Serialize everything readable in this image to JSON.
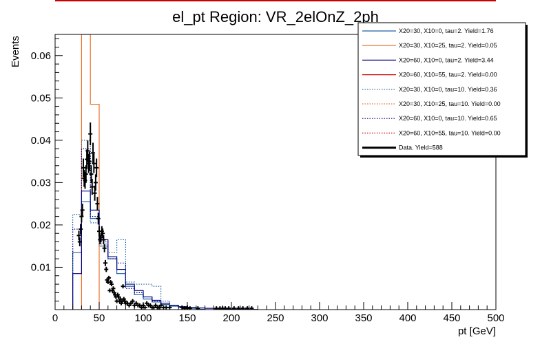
{
  "chart_data": {
    "type": "line",
    "title": "el_pt Region: VR_2elOnZ_2ph",
    "xlabel": "pt [GeV]",
    "ylabel": "Events",
    "xlim": [
      0,
      500
    ],
    "ylim": [
      0,
      0.065
    ],
    "xticks": [
      0,
      50,
      100,
      150,
      200,
      250,
      300,
      350,
      400,
      450,
      500
    ],
    "yticks": [
      0.01,
      0.02,
      0.03,
      0.04,
      0.05,
      0.06
    ],
    "grid": false,
    "legend_position": "top-right",
    "bin_width": 10,
    "series": [
      {
        "name": "X20=30, X10=0, tau=2. Yield=1.76",
        "color": "#1f5fa0",
        "style": "solid",
        "x": [
          25,
          35,
          45,
          55,
          65,
          75,
          85,
          95,
          105,
          115,
          125,
          135,
          145,
          155,
          165
        ],
        "values": [
          0.0135,
          0.0255,
          0.0215,
          0.015,
          0.012,
          0.0085,
          0.0055,
          0.0035,
          0.0025,
          0.0018,
          0.0012,
          0.0008,
          0.0005,
          0.0003,
          0.0001
        ]
      },
      {
        "name": "X20=30, X10=25, tau=2. Yield=0.05",
        "color": "#e8702a",
        "style": "solid",
        "x": [
          35,
          45
        ],
        "values": [
          0.12,
          0.0485
        ]
      },
      {
        "name": "X20=60, X10=0, tau=2. Yield=3.44",
        "color": "#000080",
        "style": "solid",
        "x": [
          25,
          35,
          45,
          55,
          65,
          75,
          85,
          95,
          105,
          115,
          125,
          135,
          145,
          155,
          165,
          175,
          185,
          195,
          205,
          215,
          225
        ],
        "values": [
          0.0085,
          0.028,
          0.0235,
          0.0165,
          0.0125,
          0.0095,
          0.006,
          0.0045,
          0.003,
          0.0022,
          0.0015,
          0.001,
          0.0007,
          0.0005,
          0.0004,
          0.0003,
          0.0002,
          0.00015,
          0.0001,
          0.0001,
          5e-05
        ]
      },
      {
        "name": "X20=60, X10=55, tau=2. Yield=0.00",
        "color": "#cc0000",
        "style": "solid",
        "x": [],
        "values": []
      },
      {
        "name": "X20=30, X10=0, tau=10. Yield=0.36",
        "color": "#1f5fa0",
        "style": "dotted",
        "x": [
          25,
          35,
          45,
          55,
          65,
          75,
          85,
          95,
          105,
          115,
          125
        ],
        "values": [
          0.0225,
          0.04,
          0.0205,
          0.0155,
          0.0135,
          0.0165,
          0.0065,
          0.006,
          0.006,
          0.0055,
          0.002
        ]
      },
      {
        "name": "X20=30, X10=25, tau=10. Yield=0.00",
        "color": "#e8702a",
        "style": "dotted",
        "x": [],
        "values": []
      },
      {
        "name": "X20=60, X10=0, tau=10. Yield=0.65",
        "color": "#000080",
        "style": "dotted",
        "x": [
          25,
          35,
          45,
          55,
          65,
          75,
          85,
          95,
          105,
          115
        ],
        "values": [
          0.019,
          0.038,
          0.022,
          0.016,
          0.012,
          0.011,
          0.005,
          0.004,
          0.003,
          0.002
        ]
      },
      {
        "name": "X20=60, X10=55, tau=10. Yield=0.00",
        "color": "#cc0000",
        "style": "dotted",
        "x": [],
        "values": []
      },
      {
        "name": "Data. Yield=588",
        "color": "#000000",
        "style": "points",
        "points": [
          [
            27,
            0.0175
          ],
          [
            28,
            0.016
          ],
          [
            29,
            0.019
          ],
          [
            30,
            0.022
          ],
          [
            31,
            0.0235
          ],
          [
            32,
            0.0335
          ],
          [
            33,
            0.031
          ],
          [
            34,
            0.0305
          ],
          [
            35,
            0.032
          ],
          [
            36,
            0.0355
          ],
          [
            37,
            0.0375
          ],
          [
            38,
            0.0345
          ],
          [
            39,
            0.035
          ],
          [
            40,
            0.0415
          ],
          [
            41,
            0.032
          ],
          [
            42,
            0.029
          ],
          [
            43,
            0.037
          ],
          [
            44,
            0.0345
          ],
          [
            45,
            0.0275
          ],
          [
            46,
            0.03
          ],
          [
            47,
            0.0335
          ],
          [
            48,
            0.025
          ],
          [
            49,
            0.0215
          ],
          [
            50,
            0.0185
          ],
          [
            51,
            0.0165
          ],
          [
            52,
            0.017
          ],
          [
            53,
            0.0185
          ],
          [
            54,
            0.018
          ],
          [
            55,
            0.0165
          ],
          [
            56,
            0.0145
          ],
          [
            57,
            0.011
          ],
          [
            58,
            0.0095
          ],
          [
            59,
            0.007
          ],
          [
            60,
            0.0065
          ],
          [
            61,
            0.0075
          ],
          [
            62,
            0.0045
          ],
          [
            63,
            0.0065
          ],
          [
            64,
            0.006
          ],
          [
            65,
            0.0045
          ],
          [
            66,
            0.005
          ],
          [
            67,
            0.004
          ],
          [
            68,
            0.0035
          ],
          [
            69,
            0.003
          ],
          [
            70,
            0.002
          ],
          [
            71,
            0.0035
          ],
          [
            72,
            0.003
          ],
          [
            73,
            0.002
          ],
          [
            74,
            0.0025
          ],
          [
            75,
            0.0015
          ],
          [
            76,
            0.002
          ],
          [
            77,
            0.0055
          ],
          [
            78,
            0.0025
          ],
          [
            79,
            0.002
          ],
          [
            80,
            0.0015
          ],
          [
            82,
            0.0015
          ],
          [
            84,
            0.001
          ],
          [
            86,
            0.0015
          ],
          [
            88,
            0.002
          ],
          [
            90,
            0.001
          ],
          [
            92,
            0.0015
          ],
          [
            94,
            0.001
          ],
          [
            96,
            0.001
          ],
          [
            98,
            0.0005
          ],
          [
            100,
            0.001
          ],
          [
            102,
            0.0005
          ],
          [
            104,
            0.0015
          ],
          [
            106,
            0.001
          ],
          [
            108,
            0.001
          ],
          [
            110,
            0.0005
          ],
          [
            112,
            0.0005
          ],
          [
            114,
            0.001
          ],
          [
            116,
            0.0005
          ],
          [
            118,
            0.0005
          ],
          [
            120,
            0.001
          ],
          [
            123,
            0.0005
          ],
          [
            126,
            0.0005
          ],
          [
            130,
            0.0005
          ],
          [
            144,
            0.0005
          ],
          [
            147,
            0.0003
          ],
          [
            150,
            0.0005
          ],
          [
            153,
            0.0003
          ],
          [
            162,
            0.0003
          ],
          [
            183,
            0.0003
          ],
          [
            187,
            0.0003
          ],
          [
            190,
            0.0003
          ],
          [
            193,
            0.0003
          ],
          [
            197,
            0.0003
          ],
          [
            203,
            0.0003
          ],
          [
            208,
            0.0003
          ],
          [
            213,
            0.0003
          ],
          [
            218,
            0.0003
          ],
          [
            223,
            0.0003
          ]
        ]
      }
    ]
  }
}
